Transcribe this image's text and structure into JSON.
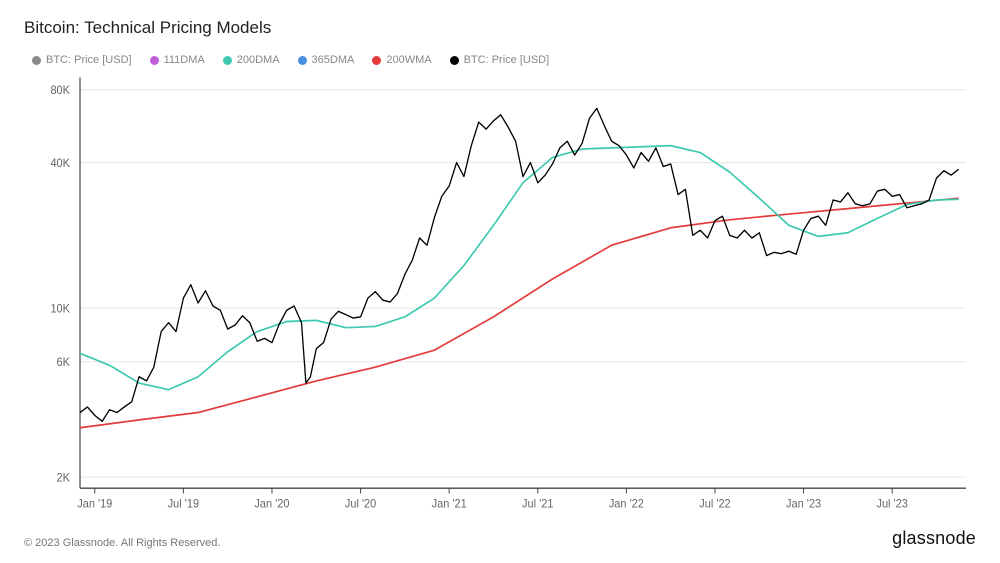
{
  "title": "Bitcoin: Technical Pricing Models",
  "legend": [
    {
      "label": "BTC: Price [USD]",
      "color": "#888888"
    },
    {
      "label": "111DMA",
      "color": "#c060d8"
    },
    {
      "label": "200DMA",
      "color": "#3cc9b0"
    },
    {
      "label": "365DMA",
      "color": "#4a90e2"
    },
    {
      "label": "200WMA",
      "color": "#e33a3a"
    },
    {
      "label": "BTC: Price [USD]",
      "color": "#000000"
    }
  ],
  "chart": {
    "type": "line",
    "scale_y": "log",
    "background_color": "#ffffff",
    "grid_color": "#e8e8e8",
    "axis_color": "#444444",
    "ylim": [
      1800,
      90000
    ],
    "yticks": [
      2000,
      6000,
      10000,
      40000,
      80000
    ],
    "ytick_labels": [
      "2K",
      "6K",
      "10K",
      "40K",
      "80K"
    ],
    "xlim": [
      0,
      60
    ],
    "xticks": [
      1,
      7,
      13,
      19,
      25,
      31,
      37,
      43,
      49,
      55
    ],
    "xtick_labels": [
      "Jan '19",
      "Jul '19",
      "Jan '20",
      "Jul '20",
      "Jan '21",
      "Jul '21",
      "Jan '22",
      "Jul '22",
      "Jan '23",
      "Jul '23"
    ],
    "series": {
      "price": {
        "color": "#000000",
        "width": 1.3,
        "points": [
          [
            0,
            3700
          ],
          [
            0.5,
            3900
          ],
          [
            1,
            3600
          ],
          [
            1.5,
            3400
          ],
          [
            2,
            3800
          ],
          [
            2.5,
            3700
          ],
          [
            3,
            3900
          ],
          [
            3.5,
            4100
          ],
          [
            4,
            5200
          ],
          [
            4.5,
            5000
          ],
          [
            5,
            5700
          ],
          [
            5.5,
            8000
          ],
          [
            6,
            8700
          ],
          [
            6.5,
            8000
          ],
          [
            7,
            11000
          ],
          [
            7.5,
            12500
          ],
          [
            8,
            10500
          ],
          [
            8.5,
            11800
          ],
          [
            9,
            10200
          ],
          [
            9.5,
            9800
          ],
          [
            10,
            8200
          ],
          [
            10.5,
            8500
          ],
          [
            11,
            9300
          ],
          [
            11.5,
            8700
          ],
          [
            12,
            7300
          ],
          [
            12.5,
            7500
          ],
          [
            13,
            7200
          ],
          [
            13.5,
            8600
          ],
          [
            14,
            9800
          ],
          [
            14.5,
            10200
          ],
          [
            15,
            8700
          ],
          [
            15.3,
            4900
          ],
          [
            15.6,
            5200
          ],
          [
            16,
            6800
          ],
          [
            16.5,
            7200
          ],
          [
            17,
            9000
          ],
          [
            17.5,
            9700
          ],
          [
            18,
            9400
          ],
          [
            18.5,
            9100
          ],
          [
            19,
            9200
          ],
          [
            19.5,
            11000
          ],
          [
            20,
            11700
          ],
          [
            20.5,
            10800
          ],
          [
            21,
            10600
          ],
          [
            21.5,
            11500
          ],
          [
            22,
            13800
          ],
          [
            22.5,
            15800
          ],
          [
            23,
            19500
          ],
          [
            23.5,
            18200
          ],
          [
            24,
            23700
          ],
          [
            24.5,
            29000
          ],
          [
            25,
            32000
          ],
          [
            25.5,
            40000
          ],
          [
            26,
            35000
          ],
          [
            26.5,
            47000
          ],
          [
            27,
            58800
          ],
          [
            27.5,
            55000
          ],
          [
            28,
            59500
          ],
          [
            28.5,
            63000
          ],
          [
            29,
            56000
          ],
          [
            29.5,
            49000
          ],
          [
            30,
            35000
          ],
          [
            30.5,
            40000
          ],
          [
            31,
            33000
          ],
          [
            31.5,
            35500
          ],
          [
            32,
            39500
          ],
          [
            32.5,
            46000
          ],
          [
            33,
            49000
          ],
          [
            33.5,
            43000
          ],
          [
            34,
            48000
          ],
          [
            34.5,
            61000
          ],
          [
            35,
            67000
          ],
          [
            35.5,
            57000
          ],
          [
            36,
            49000
          ],
          [
            36.5,
            47000
          ],
          [
            37,
            43000
          ],
          [
            37.5,
            38000
          ],
          [
            38,
            44000
          ],
          [
            38.5,
            40500
          ],
          [
            39,
            46000
          ],
          [
            39.5,
            38500
          ],
          [
            40,
            39500
          ],
          [
            40.5,
            29500
          ],
          [
            41,
            31000
          ],
          [
            41.5,
            20000
          ],
          [
            42,
            21000
          ],
          [
            42.5,
            19500
          ],
          [
            43,
            23000
          ],
          [
            43.5,
            24000
          ],
          [
            44,
            20000
          ],
          [
            44.5,
            19500
          ],
          [
            45,
            21000
          ],
          [
            45.5,
            19500
          ],
          [
            46,
            20500
          ],
          [
            46.5,
            16500
          ],
          [
            47,
            17000
          ],
          [
            47.5,
            16800
          ],
          [
            48,
            17200
          ],
          [
            48.5,
            16700
          ],
          [
            49,
            21000
          ],
          [
            49.5,
            23500
          ],
          [
            50,
            24000
          ],
          [
            50.5,
            22000
          ],
          [
            51,
            28000
          ],
          [
            51.5,
            27500
          ],
          [
            52,
            30000
          ],
          [
            52.5,
            27000
          ],
          [
            53,
            26500
          ],
          [
            53.5,
            27000
          ],
          [
            54,
            30500
          ],
          [
            54.5,
            31000
          ],
          [
            55,
            29000
          ],
          [
            55.5,
            29500
          ],
          [
            56,
            26000
          ],
          [
            56.5,
            26500
          ],
          [
            57,
            27000
          ],
          [
            57.5,
            28000
          ],
          [
            58,
            34500
          ],
          [
            58.5,
            37000
          ],
          [
            59,
            35500
          ],
          [
            59.5,
            37500
          ]
        ]
      },
      "dma200": {
        "color": "#3cc9b0",
        "width": 1.6,
        "points": [
          [
            0,
            6500
          ],
          [
            2,
            5800
          ],
          [
            4,
            4900
          ],
          [
            6,
            4600
          ],
          [
            8,
            5200
          ],
          [
            10,
            6600
          ],
          [
            12,
            8000
          ],
          [
            14,
            8800
          ],
          [
            16,
            8900
          ],
          [
            18,
            8300
          ],
          [
            20,
            8400
          ],
          [
            22,
            9200
          ],
          [
            24,
            11000
          ],
          [
            26,
            15000
          ],
          [
            28,
            22000
          ],
          [
            30,
            33000
          ],
          [
            32,
            42000
          ],
          [
            34,
            45500
          ],
          [
            36,
            46000
          ],
          [
            38,
            46500
          ],
          [
            40,
            47000
          ],
          [
            42,
            44000
          ],
          [
            44,
            36500
          ],
          [
            46,
            28500
          ],
          [
            48,
            22000
          ],
          [
            50,
            19800
          ],
          [
            52,
            20500
          ],
          [
            54,
            23500
          ],
          [
            56,
            26800
          ],
          [
            58,
            28000
          ],
          [
            59.5,
            28200
          ]
        ]
      },
      "wma200": {
        "color": "#e33a3a",
        "width": 1.6,
        "points": [
          [
            0,
            3200
          ],
          [
            4,
            3450
          ],
          [
            8,
            3700
          ],
          [
            12,
            4300
          ],
          [
            16,
            5000
          ],
          [
            20,
            5700
          ],
          [
            24,
            6700
          ],
          [
            28,
            9200
          ],
          [
            32,
            13200
          ],
          [
            36,
            18200
          ],
          [
            40,
            21500
          ],
          [
            44,
            23200
          ],
          [
            48,
            24500
          ],
          [
            52,
            25800
          ],
          [
            56,
            27200
          ],
          [
            59.5,
            28500
          ]
        ]
      }
    }
  },
  "footer": {
    "copyright": "© 2023 Glassnode. All Rights Reserved.",
    "brand": "glassnode"
  }
}
